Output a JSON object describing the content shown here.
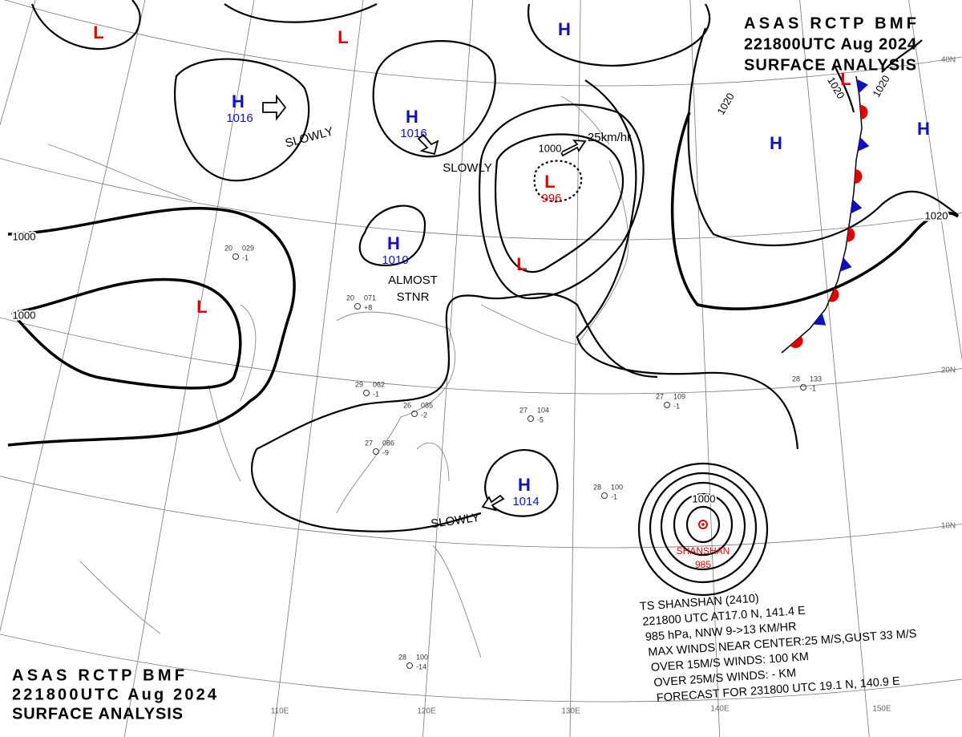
{
  "header": {
    "lines": [
      "ASAS RCTP BMF",
      "221800UTC Aug 2024",
      "SURFACE ANALYSIS"
    ]
  },
  "centers": [
    {
      "label": "L",
      "color": "#e00000"
    },
    {
      "label": "L",
      "color": "#e00000"
    },
    {
      "label": "H",
      "value": "1016",
      "color": "#1010c0"
    },
    {
      "label": "H",
      "value": "1016",
      "color": "#1010c0"
    },
    {
      "label": "H",
      "value": "1010",
      "color": "#1010c0"
    },
    {
      "label": "L",
      "color": "#e00000"
    },
    {
      "label": "L",
      "value": "996",
      "color": "#e00000"
    },
    {
      "label": "L",
      "color": "#e00000"
    },
    {
      "label": "H",
      "color": "#1010c0"
    },
    {
      "label": "H",
      "color": "#1010c0"
    },
    {
      "label": "H",
      "color": "#1010c0"
    },
    {
      "label": "H",
      "value": "1014",
      "color": "#1010c0"
    },
    {
      "label": "L",
      "color": "#e00000"
    }
  ],
  "isobar_labels": [
    "1000",
    "1000",
    "1000",
    "1020",
    "1020",
    "1020",
    "1020",
    "1000"
  ],
  "movements": [
    "SLOWLY",
    "SLOWLY",
    "ALMOST",
    "STNR",
    "SLOWLY",
    "25km/hr"
  ],
  "grid_labels": [
    "40N",
    "20N",
    "10N",
    "110E",
    "120E",
    "130E",
    "140E",
    "150E"
  ],
  "typhoon": {
    "name": "SHANSHAN",
    "pressure": "985",
    "info": [
      "TS SHANSHAN (2410)",
      "221800 UTC AT17.0 N, 141.4 E",
      "985 hPa, NNW 9->13 KM/HR",
      "MAX WINDS NEAR CENTER:25 M/S,GUST 33 M/S",
      "OVER 15M/S WINDS: 100 KM",
      "OVER 25M/S WINDS: - KM",
      "FORECAST FOR 231800 UTC 19.1 N, 140.9 E"
    ]
  },
  "stations": [
    {
      "t": "27",
      "p": "086",
      "d": "-9"
    },
    {
      "t": "29",
      "p": "062",
      "d": "-1"
    },
    {
      "t": "26",
      "p": "085",
      "d": "-2"
    },
    {
      "t": "27",
      "p": "104",
      "d": "-5"
    },
    {
      "t": "28",
      "p": "100",
      "d": "-14"
    },
    {
      "t": "20",
      "p": "029",
      "d": "-1"
    },
    {
      "t": "20",
      "p": "071",
      "d": "+8"
    },
    {
      "t": "28",
      "p": "133",
      "d": "-1"
    },
    {
      "t": "27",
      "p": "109",
      "d": "-1"
    },
    {
      "t": "28",
      "p": "100",
      "d": "-1"
    }
  ]
}
